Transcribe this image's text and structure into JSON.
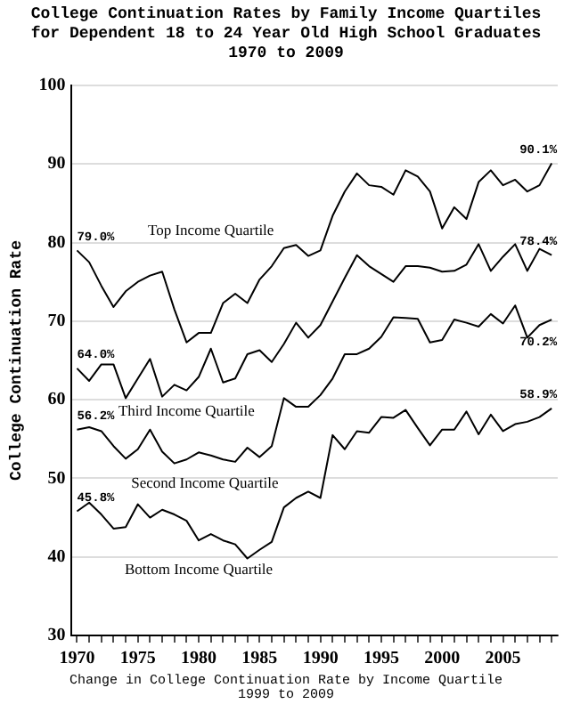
{
  "chart_data": {
    "type": "line",
    "title": "College Continuation Rates by Family Income Quartiles\nfor Dependent 18 to 24 Year Old High School Graduates\n1970 to 2009",
    "ylabel": "College Continuation Rate",
    "annotations": [
      "Change in College Continuation Rate by Income Quartile\n1999 to 2009"
    ],
    "x": [
      1970,
      1971,
      1972,
      1973,
      1974,
      1975,
      1976,
      1977,
      1978,
      1979,
      1980,
      1981,
      1982,
      1983,
      1984,
      1985,
      1986,
      1987,
      1988,
      1989,
      1990,
      1991,
      1992,
      1993,
      1994,
      1995,
      1996,
      1997,
      1998,
      1999,
      2000,
      2001,
      2002,
      2003,
      2004,
      2005,
      2006,
      2007,
      2008,
      2009
    ],
    "series": [
      {
        "name": "Top Income Quartile",
        "color": "#000000",
        "values": [
          79.0,
          77.5,
          74.5,
          71.8,
          73.8,
          75,
          75.8,
          76.3,
          71.5,
          67.3,
          68.5,
          68.5,
          72.3,
          73.5,
          72.3,
          75.3,
          77,
          79.3,
          79.7,
          78.3,
          79,
          83.4,
          86.5,
          88.8,
          87.3,
          87.1,
          86.1,
          89.2,
          88.4,
          86.5,
          81.8,
          84.5,
          83,
          87.7,
          89.2,
          87.3,
          88,
          86.5,
          87.3,
          90.1
        ],
        "value_labels": [
          "79.0%",
          null,
          null,
          null,
          null,
          null,
          null,
          null,
          null,
          null,
          null,
          null,
          null,
          null,
          null,
          null,
          null,
          null,
          null,
          null,
          null,
          null,
          null,
          null,
          null,
          null,
          null,
          null,
          null,
          null,
          null,
          null,
          null,
          null,
          null,
          null,
          null,
          null,
          null,
          "90.1%"
        ]
      },
      {
        "name": "Third Income Quartile",
        "color": "#000000",
        "values": [
          64.0,
          62.4,
          64.5,
          64.5,
          60.2,
          62.7,
          65.2,
          60.4,
          61.9,
          61.2,
          62.9,
          66.5,
          62.2,
          62.7,
          65.8,
          66.3,
          64.8,
          67.1,
          69.8,
          67.9,
          69.5,
          72.5,
          75.5,
          78.4,
          77,
          76,
          75,
          77,
          77,
          76.8,
          76.3,
          76.4,
          77.2,
          79.8,
          76.4,
          78.2,
          79.8,
          76.4,
          79.2,
          78.4
        ],
        "value_labels": [
          "64.0%",
          null,
          null,
          null,
          null,
          null,
          null,
          null,
          null,
          null,
          null,
          null,
          null,
          null,
          null,
          null,
          null,
          null,
          null,
          null,
          null,
          null,
          null,
          null,
          null,
          null,
          null,
          null,
          null,
          null,
          null,
          null,
          null,
          null,
          null,
          null,
          null,
          null,
          null,
          "78.4%"
        ]
      },
      {
        "name": "Second Income Quartile",
        "color": "#000000",
        "values": [
          56.2,
          56.5,
          56,
          54.1,
          52.5,
          53.7,
          56.2,
          53.4,
          51.9,
          52.4,
          53.3,
          52.9,
          52.4,
          52.1,
          53.9,
          52.7,
          54.1,
          60.2,
          59.1,
          59.1,
          60.6,
          62.7,
          65.8,
          65.8,
          66.5,
          68,
          70.5,
          70.4,
          70.3,
          67.3,
          67.6,
          70.2,
          69.8,
          69.3,
          70.9,
          69.7,
          72,
          67.9,
          69.5,
          70.2
        ],
        "value_labels": [
          "56.2%",
          null,
          null,
          null,
          null,
          null,
          null,
          null,
          null,
          null,
          null,
          null,
          null,
          null,
          null,
          null,
          null,
          null,
          null,
          null,
          null,
          null,
          null,
          null,
          null,
          null,
          null,
          null,
          null,
          null,
          null,
          null,
          null,
          null,
          null,
          null,
          null,
          null,
          null,
          "70.2%"
        ]
      },
      {
        "name": "Bottom Income Quartile",
        "color": "#000000",
        "values": [
          45.8,
          46.9,
          45.4,
          43.6,
          43.8,
          46.7,
          45,
          46,
          45.4,
          44.6,
          42.1,
          42.9,
          42.1,
          41.6,
          39.8,
          40.9,
          41.9,
          46.3,
          47.5,
          48.3,
          47.5,
          55.5,
          53.7,
          56,
          55.8,
          57.8,
          57.7,
          58.7,
          56.4,
          54.2,
          56.2,
          56.2,
          58.5,
          55.6,
          58.1,
          56,
          56.9,
          57.2,
          57.8,
          58.9
        ],
        "value_labels": [
          "45.8%",
          null,
          null,
          null,
          null,
          null,
          null,
          null,
          null,
          null,
          null,
          null,
          null,
          null,
          null,
          null,
          null,
          null,
          null,
          null,
          null,
          null,
          null,
          null,
          null,
          null,
          null,
          null,
          null,
          null,
          null,
          null,
          null,
          null,
          null,
          null,
          null,
          null,
          null,
          "58.9%"
        ]
      }
    ],
    "xlim": [
      1969.5,
      2009.5
    ],
    "xticks": [
      1970,
      {
        "value": 1971,
        "label": null
      },
      {
        "value": 1972,
        "label": null
      },
      {
        "value": 1973,
        "label": null
      },
      {
        "value": 1974,
        "label": null
      },
      1975,
      {
        "value": 1976,
        "label": null
      },
      {
        "value": 1977,
        "label": null
      },
      {
        "value": 1978,
        "label": null
      },
      {
        "value": 1979,
        "label": null
      },
      1980,
      {
        "value": 1981,
        "label": null
      },
      {
        "value": 1982,
        "label": null
      },
      {
        "value": 1983,
        "label": null
      },
      {
        "value": 1984,
        "label": null
      },
      1985,
      {
        "value": 1986,
        "label": null
      },
      {
        "value": 1987,
        "label": null
      },
      {
        "value": 1988,
        "label": null
      },
      {
        "value": 1989,
        "label": null
      },
      1990,
      {
        "value": 1991,
        "label": null
      },
      {
        "value": 1992,
        "label": null
      },
      {
        "value": 1993,
        "label": null
      },
      {
        "value": 1994,
        "label": null
      },
      1995,
      {
        "value": 1996,
        "label": null
      },
      {
        "value": 1997,
        "label": null
      },
      {
        "value": 1998,
        "label": null
      },
      {
        "value": 1999,
        "label": null
      },
      2000,
      {
        "value": 2001,
        "label": null
      },
      {
        "value": 2002,
        "label": null
      },
      {
        "value": 2003,
        "label": null
      },
      {
        "value": 2004,
        "label": null
      },
      2005,
      {
        "value": 2006,
        "label": null
      },
      {
        "value": 2007,
        "label": null
      },
      {
        "value": 2008,
        "label": null
      },
      {
        "value": 2009,
        "label": null
      }
    ],
    "ylim": [
      30,
      100
    ],
    "yticks": [
      30,
      40,
      50,
      60,
      70,
      80,
      90,
      100
    ],
    "grid": "y",
    "legend": false,
    "marker": "none",
    "line_style": "solid"
  }
}
